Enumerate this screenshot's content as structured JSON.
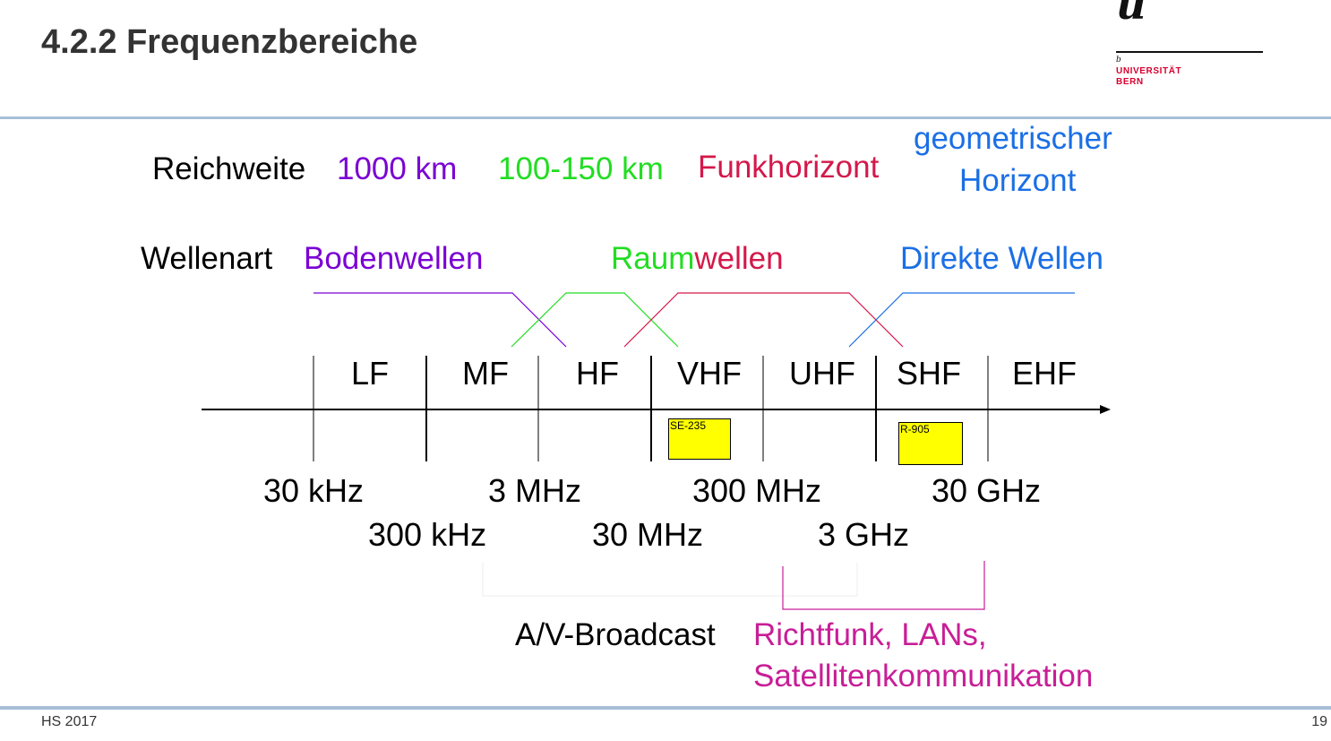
{
  "header": {
    "title": "4.2.2 Frequenzbereiche",
    "logo": {
      "mark": "u",
      "superscript": "b",
      "line1": "UNIVERSITÄT",
      "line2": "BERN"
    }
  },
  "diagram": {
    "reichweite": {
      "label": "Reichweite",
      "items": [
        {
          "text": "1000 km",
          "color": "#7a00d4"
        },
        {
          "text": "100-150 km",
          "color": "#22dd22"
        },
        {
          "text": "Funkhorizont",
          "color": "#d4184a"
        },
        {
          "text": "geometrischer",
          "color": "#1a6fe6"
        },
        {
          "text": "Horizont",
          "color": "#1a6fe6"
        }
      ]
    },
    "wellenart": {
      "label": "Wellenart",
      "items": [
        {
          "text": "Bodenwellen",
          "color": "#7a00d4"
        },
        {
          "text": "Raum",
          "color": "#22dd22"
        },
        {
          "text": "wellen",
          "color": "#d4184a"
        },
        {
          "text": "Direkte Wellen",
          "color": "#1a6fe6"
        }
      ]
    },
    "bands": [
      "LF",
      "MF",
      "HF",
      "VHF",
      "UHF",
      "SHF",
      "EHF"
    ],
    "frequencies_upper": [
      "30 kHz",
      "3 MHz",
      "300 MHz",
      "30 GHz"
    ],
    "frequencies_lower": [
      "300 kHz",
      "30 MHz",
      "3 GHz"
    ],
    "tags": [
      "SE-235",
      "R-905"
    ],
    "applications": {
      "broadcast": "A/V-Broadcast",
      "richtfunk_line1": "Richtfunk, LANs,",
      "richtfunk_line2": "Satellitenkommunikation",
      "richtfunk_color": "#c81e96"
    }
  },
  "footer": {
    "left": "HS 2017",
    "page": "19"
  }
}
